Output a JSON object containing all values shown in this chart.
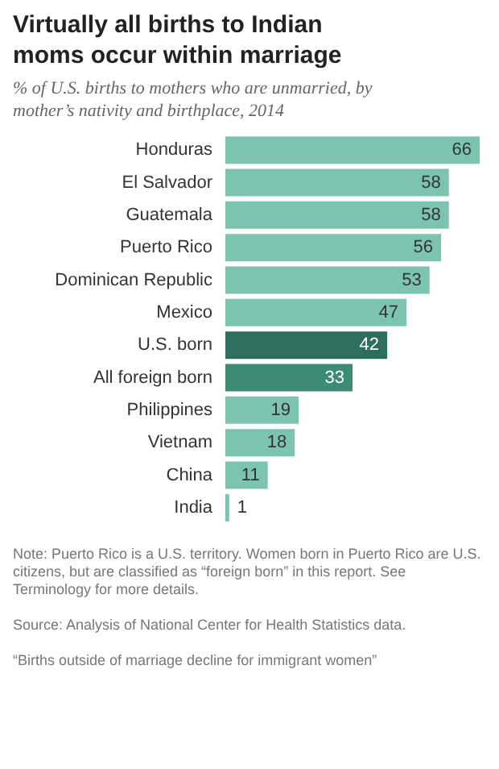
{
  "chart_data": {
    "type": "bar",
    "orientation": "horizontal",
    "title": "Virtually all births to Indian moms occur within marriage",
    "subtitle": "% of U.S. births to mothers who are unmarried, by mother’s nativity and birthplace, 2014",
    "categories": [
      "Honduras",
      "El Salvador",
      "Guatemala",
      "Puerto Rico",
      "Dominican Republic",
      "Mexico",
      "U.S. born",
      "All foreign born",
      "Philippines",
      "Vietnam",
      "China",
      "India"
    ],
    "values": [
      66,
      58,
      58,
      56,
      53,
      47,
      42,
      33,
      19,
      18,
      11,
      1
    ],
    "colors": [
      "#7cc4b0",
      "#7cc4b0",
      "#7cc4b0",
      "#7cc4b0",
      "#7cc4b0",
      "#7cc4b0",
      "#2e6e5e",
      "#3d8a75",
      "#7cc4b0",
      "#7cc4b0",
      "#7cc4b0",
      "#7cc4b0"
    ],
    "data_labels": true,
    "annotations": [
      "Note: Puerto Rico is a U.S. territory. Women born in Puerto Rico are U.S. citizens, but are classified as “foreign born” in this report. See Terminology for more details.",
      "Source: Analysis of National Center for Health Statistics data.",
      "“Births outside of marriage decline for immigrant women”"
    ]
  }
}
